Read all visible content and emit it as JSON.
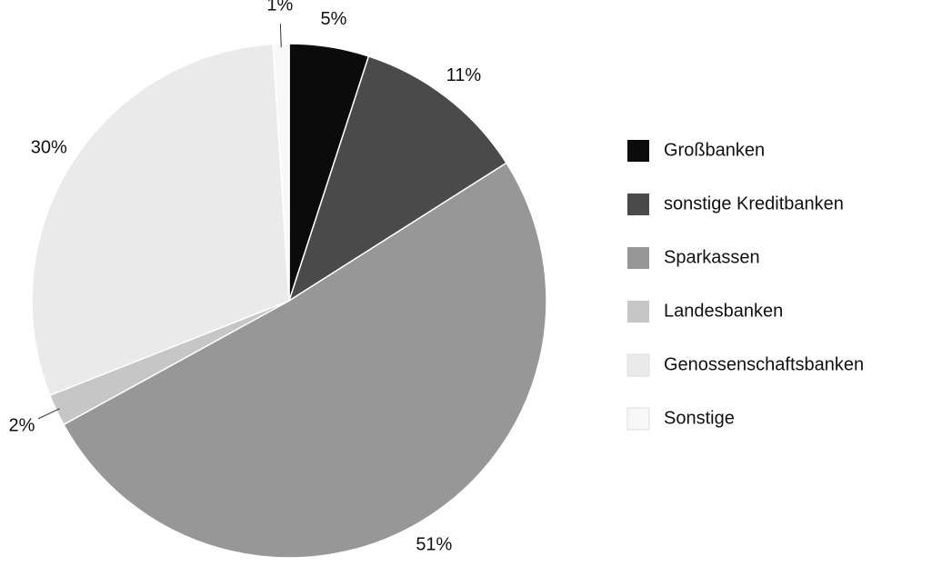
{
  "chart_data": {
    "type": "pie",
    "categories": [
      "Großbanken",
      "sonstige Kreditbanken",
      "Sparkassen",
      "Landesbanken",
      "Genossenschaftsbanken",
      "Sonstige"
    ],
    "values": [
      5,
      11,
      51,
      2,
      30,
      1
    ],
    "value_labels": [
      "5%",
      "11%",
      "51%",
      "2%",
      "30%",
      "1%"
    ],
    "colors": [
      "#0b0b0b",
      "#4a4a4a",
      "#979797",
      "#c6c6c6",
      "#eaeaea",
      "#f8f8f8"
    ],
    "legend": "right"
  }
}
